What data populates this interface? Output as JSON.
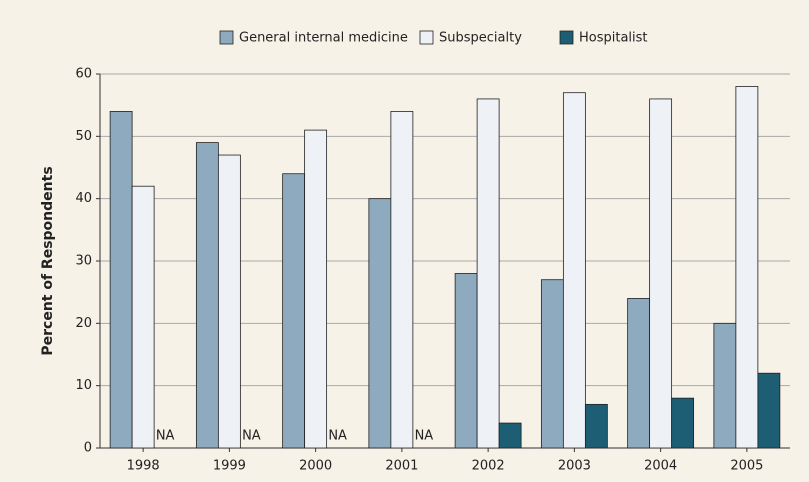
{
  "chart_data": {
    "type": "bar",
    "y_label": "Percent of Respondents",
    "categories": [
      "1998",
      "1999",
      "2000",
      "2001",
      "2002",
      "2003",
      "2004",
      "2005"
    ],
    "series": [
      {
        "name": "General internal medicine",
        "color": "#8eaabf",
        "values": [
          54,
          49,
          44,
          40,
          28,
          27,
          24,
          20
        ]
      },
      {
        "name": "Subspecialty",
        "color": "#eef1f6",
        "values": [
          42,
          47,
          51,
          54,
          56,
          57,
          56,
          58
        ]
      },
      {
        "name": "Hospitalist",
        "color": "#1d5e74",
        "values": [
          null,
          null,
          null,
          null,
          4,
          7,
          8,
          12
        ],
        "value_labels": [
          "NA",
          "NA",
          "NA",
          "NA",
          null,
          null,
          null,
          null
        ]
      }
    ],
    "ylim": [
      0,
      60
    ],
    "yticks": [
      0,
      10,
      20,
      30,
      40,
      50,
      60
    ],
    "grid": true
  }
}
